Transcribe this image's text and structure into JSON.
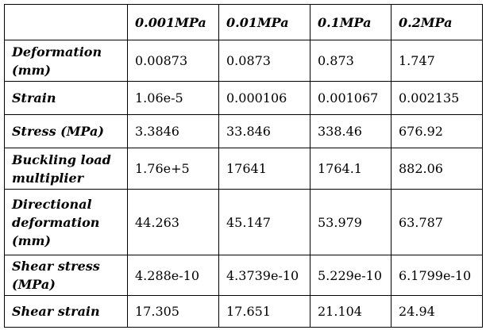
{
  "table": {
    "corner": "",
    "columns": [
      "0.001MPa",
      "0.01MPa",
      "0.1MPa",
      "0.2MPa"
    ],
    "rows": [
      {
        "label": "Deformation (mm)",
        "values": [
          "0.00873",
          "0.0873",
          "0.873",
          "1.747"
        ]
      },
      {
        "label": "Strain",
        "values": [
          "1.06e-5",
          "0.000106",
          "0.001067",
          "0.002135"
        ]
      },
      {
        "label": "Stress (MPa)",
        "values": [
          "3.3846",
          "33.846",
          "338.46",
          "676.92"
        ]
      },
      {
        "label": "Buckling load multiplier",
        "values": [
          "1.76e+5",
          "17641",
          "1764.1",
          "882.06"
        ]
      },
      {
        "label": "Directional deformation (mm)",
        "values": [
          "44.263",
          "45.147",
          "53.979",
          "63.787"
        ]
      },
      {
        "label": "Shear stress (MPa)",
        "values": [
          "4.288e-10",
          "4.3739e-10",
          "5.229e-10",
          "6.1799e-10"
        ]
      },
      {
        "label": "Shear strain",
        "values": [
          "17.305",
          "17.651",
          "21.104",
          "24.94"
        ]
      }
    ]
  }
}
